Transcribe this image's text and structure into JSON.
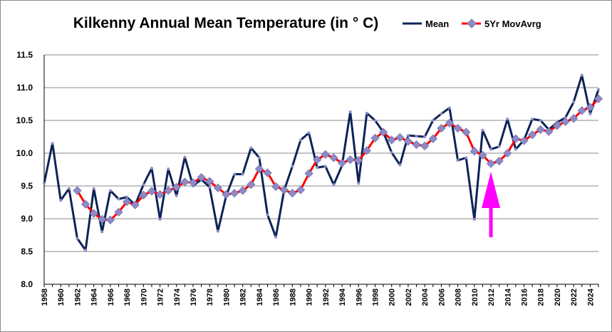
{
  "chart_data": {
    "type": "line",
    "title": "Kilkenny Annual Mean Temperature (in ° C)",
    "xlabel": "",
    "ylabel": "",
    "ylim": [
      8.0,
      11.5
    ],
    "yticks": [
      "8.0",
      "8.5",
      "9.0",
      "9.5",
      "10.0",
      "10.5",
      "11.0",
      "11.5"
    ],
    "xlim": [
      1958,
      2025
    ],
    "xticks": [
      "1958",
      "1960",
      "1962",
      "1964",
      "1966",
      "1968",
      "1970",
      "1972",
      "1974",
      "1976",
      "1978",
      "1980",
      "1982",
      "1984",
      "1986",
      "1988",
      "1990",
      "1992",
      "1994",
      "1996",
      "1998",
      "2000",
      "2002",
      "2004",
      "2006",
      "2008",
      "2010",
      "2012",
      "2014",
      "2016",
      "2018",
      "2020",
      "2022",
      "2024"
    ],
    "grid": true,
    "legend_position": "top-right",
    "x": [
      1958,
      1959,
      1960,
      1961,
      1962,
      1963,
      1964,
      1965,
      1966,
      1967,
      1968,
      1969,
      1970,
      1971,
      1972,
      1973,
      1974,
      1975,
      1976,
      1977,
      1978,
      1979,
      1980,
      1981,
      1982,
      1983,
      1984,
      1985,
      1986,
      1987,
      1988,
      1989,
      1990,
      1991,
      1992,
      1993,
      1994,
      1995,
      1996,
      1997,
      1998,
      1999,
      2000,
      2001,
      2002,
      2003,
      2004,
      2005,
      2006,
      2007,
      2008,
      2009,
      2010,
      2011,
      2012,
      2013,
      2014,
      2015,
      2016,
      2017,
      2018,
      2019,
      2020,
      2021,
      2022,
      2023,
      2024,
      2025
    ],
    "series": [
      {
        "name": "Mean",
        "color": "#0d2357",
        "values": [
          9.54,
          10.15,
          9.28,
          9.46,
          8.7,
          8.52,
          9.46,
          8.8,
          9.43,
          9.3,
          9.33,
          9.21,
          9.52,
          9.77,
          8.99,
          9.76,
          9.35,
          9.94,
          9.5,
          9.6,
          9.48,
          8.81,
          9.35,
          9.68,
          9.68,
          10.08,
          9.93,
          9.06,
          8.72,
          9.43,
          9.8,
          10.2,
          10.31,
          9.78,
          9.8,
          9.52,
          9.81,
          10.63,
          9.54,
          10.61,
          10.5,
          10.32,
          10.01,
          9.82,
          10.27,
          10.26,
          10.25,
          10.5,
          10.6,
          10.69,
          9.89,
          9.93,
          8.99,
          10.35,
          10.06,
          10.1,
          10.52,
          10.06,
          10.2,
          10.52,
          10.5,
          10.36,
          10.47,
          10.54,
          10.78,
          11.19,
          10.6,
          10.97
        ]
      },
      {
        "name": "5Yr MovAvrg",
        "color": "#ff0000",
        "marker_color": "#8e8ac6",
        "values": [
          null,
          null,
          null,
          null,
          9.43,
          9.22,
          9.08,
          8.99,
          8.98,
          9.1,
          9.26,
          9.21,
          9.36,
          9.42,
          9.37,
          9.43,
          9.48,
          9.56,
          9.55,
          9.63,
          9.57,
          9.47,
          9.37,
          9.39,
          9.43,
          9.52,
          9.76,
          9.7,
          9.49,
          9.44,
          9.39,
          9.44,
          9.69,
          9.9,
          9.98,
          9.93,
          9.85,
          9.9,
          9.89,
          10.04,
          10.23,
          10.32,
          10.2,
          10.24,
          10.18,
          10.13,
          10.11,
          10.22,
          10.38,
          10.46,
          10.38,
          10.32,
          10.03,
          9.97,
          9.84,
          9.88,
          10.0,
          10.22,
          10.19,
          10.28,
          10.36,
          10.33,
          10.42,
          10.48,
          10.53,
          10.65,
          10.7,
          10.83
        ]
      }
    ]
  }
}
